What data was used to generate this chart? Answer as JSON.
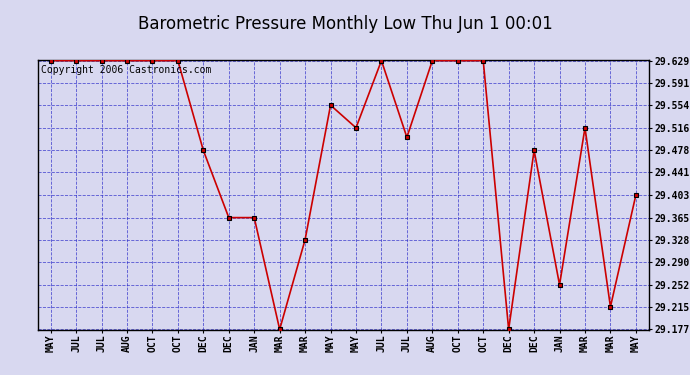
{
  "title": "Barometric Pressure Monthly Low Thu Jun 1 00:01",
  "copyright": "Copyright 2006 Castronics.com",
  "x_labels": [
    "MAY",
    "JUL",
    "JUL",
    "AUG",
    "OCT",
    "OCT",
    "DEC",
    "DEC",
    "JAN",
    "MAR",
    "MAR",
    "MAY",
    "MAY",
    "JUL",
    "JUL",
    "AUG",
    "OCT",
    "OCT",
    "DEC",
    "DEC",
    "JAN",
    "MAR",
    "MAR",
    "MAY"
  ],
  "y_values": [
    29.629,
    29.629,
    29.629,
    29.629,
    29.629,
    29.629,
    29.478,
    29.365,
    29.365,
    29.177,
    29.328,
    29.554,
    29.516,
    29.629,
    29.5,
    29.629,
    29.629,
    29.629,
    29.177,
    29.478,
    29.252,
    29.516,
    29.215,
    29.403
  ],
  "ylim_min": 29.177,
  "ylim_max": 29.629,
  "yticks": [
    29.177,
    29.215,
    29.252,
    29.29,
    29.328,
    29.365,
    29.403,
    29.441,
    29.478,
    29.516,
    29.554,
    29.591,
    29.629
  ],
  "line_color": "#cc0000",
  "marker_color": "#000000",
  "marker_face_color": "#cc0000",
  "bg_color": "#d8d8f0",
  "grid_color": "#3333cc",
  "border_color": "#000000",
  "title_fontsize": 12,
  "copyright_fontsize": 7,
  "tick_fontsize": 7
}
